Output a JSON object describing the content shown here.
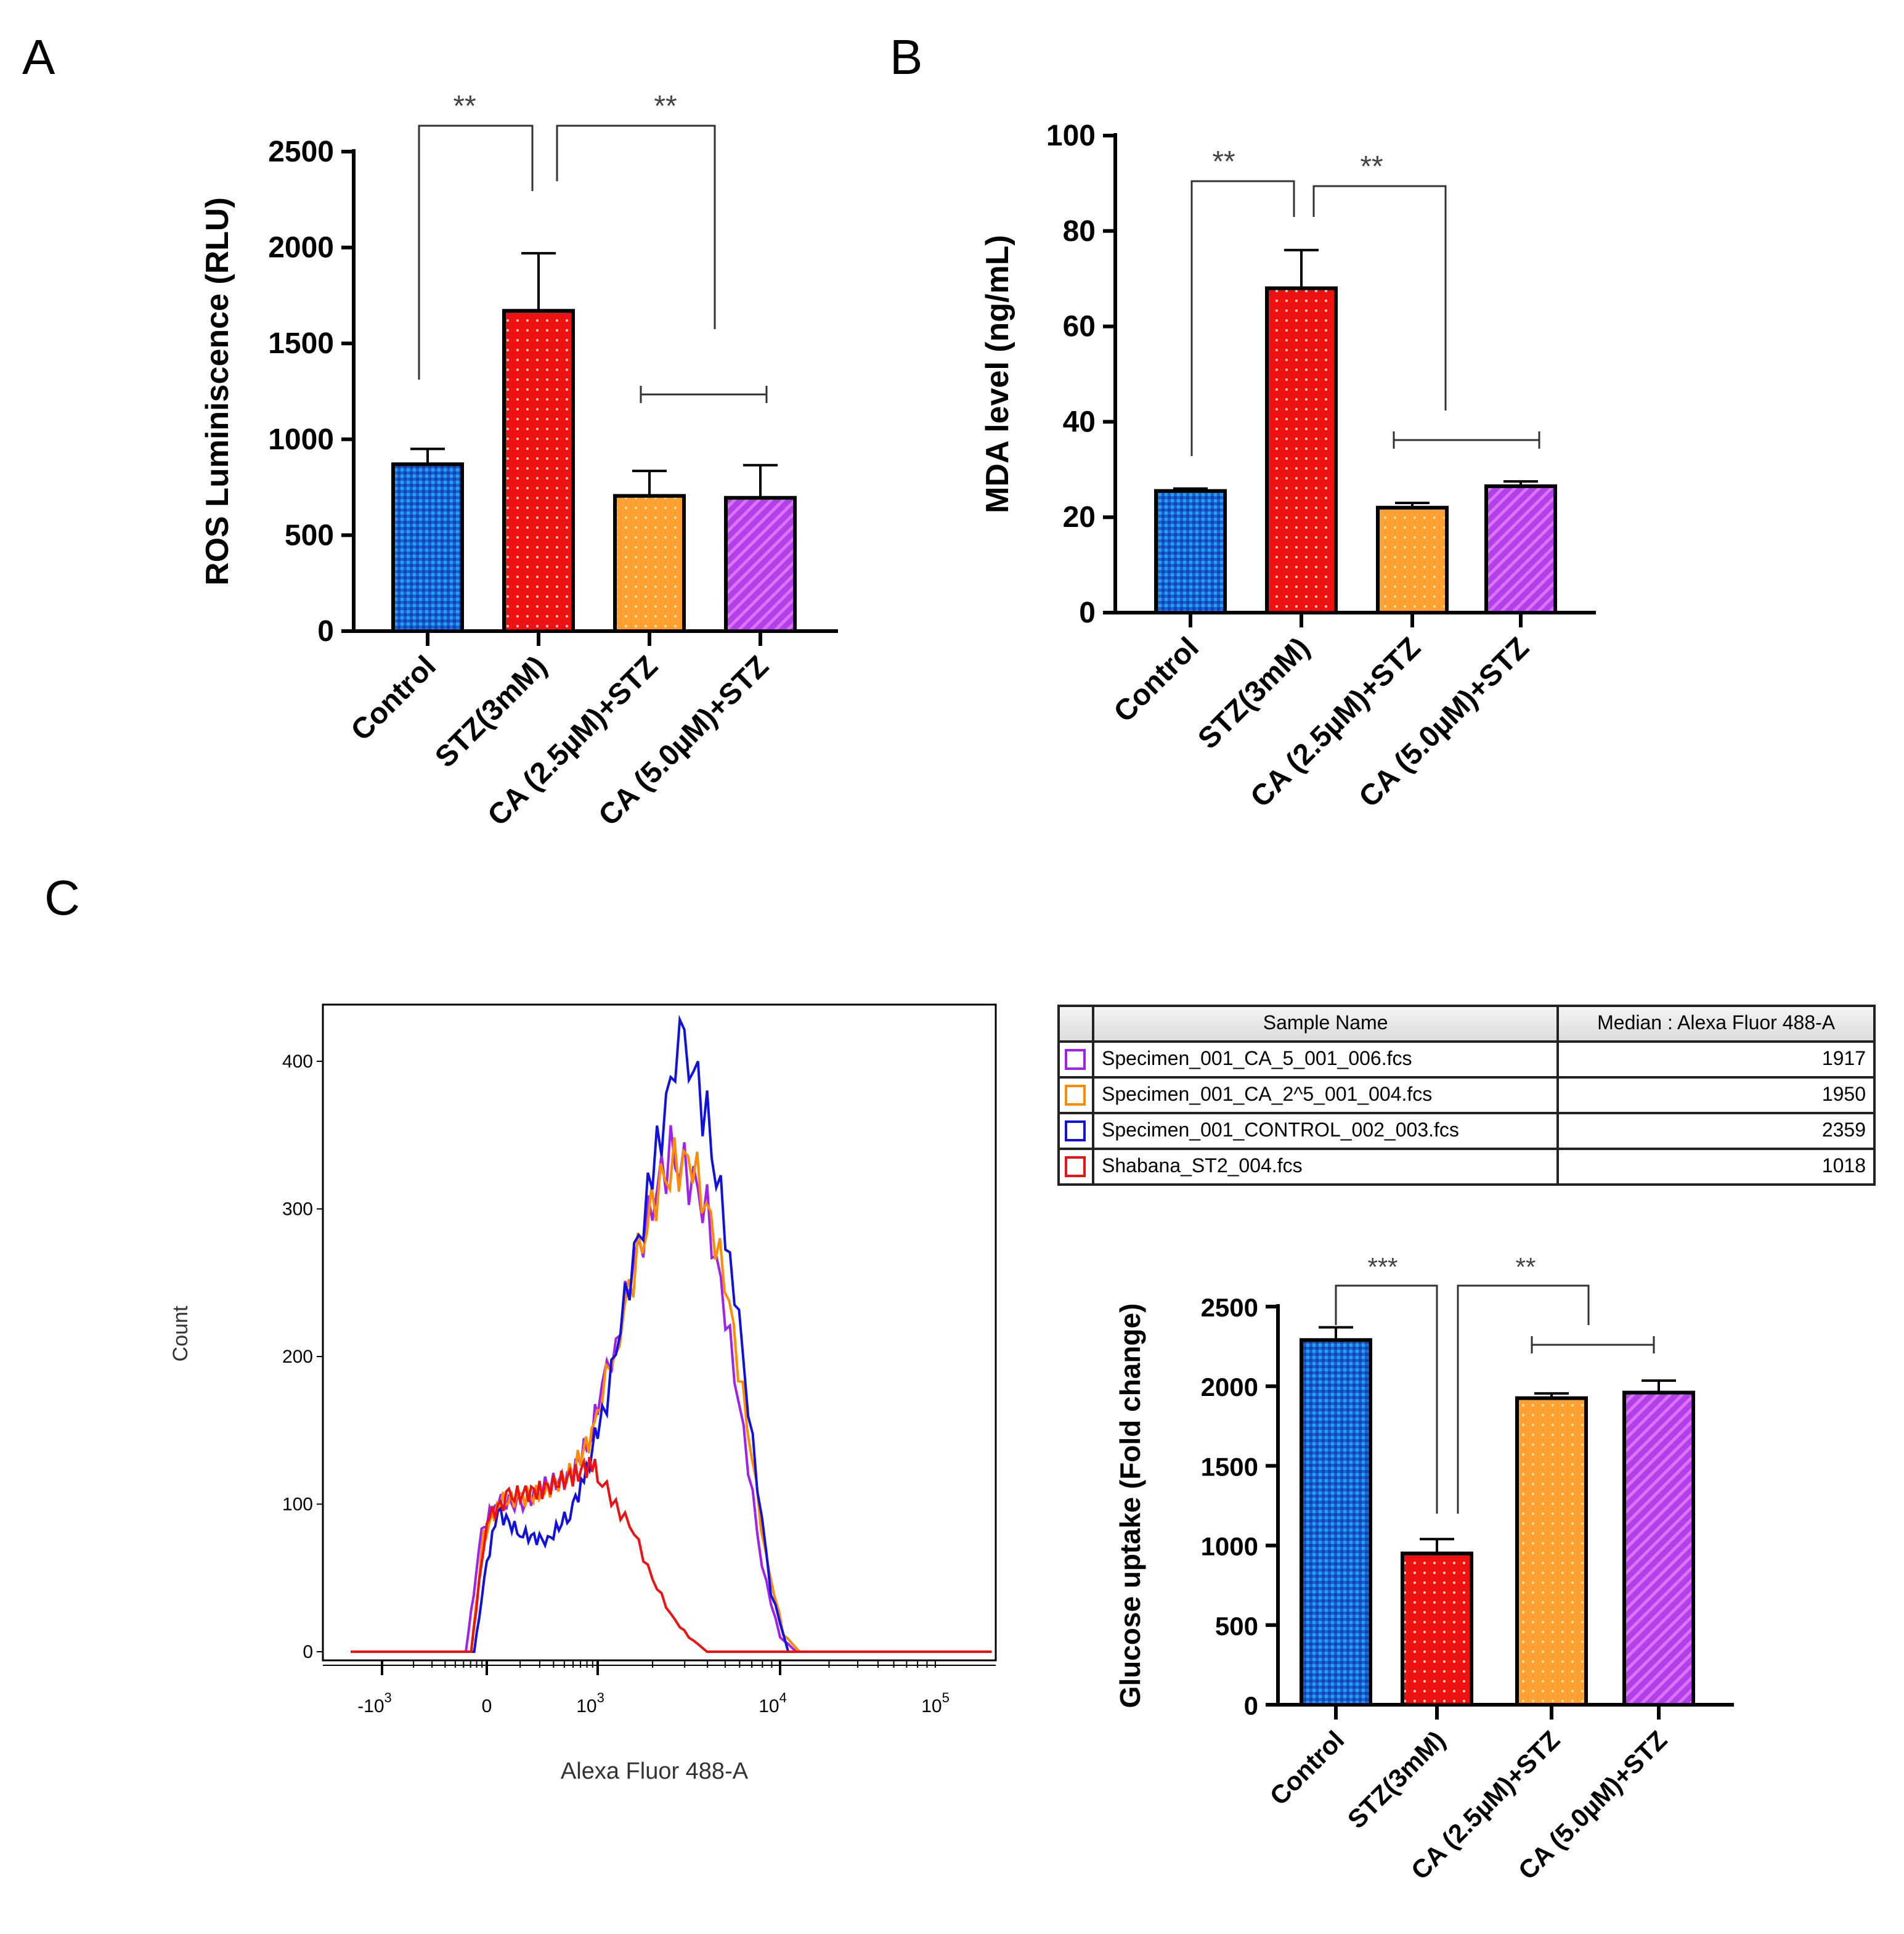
{
  "panel_labels": {
    "a": "A",
    "b": "B",
    "c": "C"
  },
  "categories": [
    "Control",
    "STZ(3mM)",
    "CA (2.5µM)+STZ",
    "CA (5.0µM)+STZ"
  ],
  "colors": {
    "control": "#1f5fd6",
    "stz": "#ee1111",
    "ca25": "#ffa030",
    "ca50": "#b040e8"
  },
  "chart_data": [
    {
      "type": "bar",
      "panel": "A",
      "title": "",
      "ylabel": "ROS Luminiscence (RLU)",
      "ylim": [
        0,
        2500
      ],
      "yticks": [
        "0",
        "500",
        "1000",
        "1500",
        "2000",
        "2500"
      ],
      "categories": [
        "Control",
        "STZ(3mM)",
        "CA (2.5µM)+STZ",
        "CA (5.0µM)+STZ"
      ],
      "values": [
        870,
        1670,
        705,
        695
      ],
      "errors": [
        80,
        300,
        130,
        170
      ],
      "significance": [
        {
          "from": "Control",
          "to": "STZ(3mM)",
          "label": "**"
        },
        {
          "from": "STZ(3mM)",
          "to": "CA (5.0µM)+STZ",
          "label": "**"
        },
        {
          "from": "CA (2.5µM)+STZ",
          "to": "CA (5.0µM)+STZ",
          "label": ""
        }
      ]
    },
    {
      "type": "bar",
      "panel": "B",
      "ylabel": "MDA level (ng/mL)",
      "ylim": [
        0,
        100
      ],
      "yticks": [
        "0",
        "20",
        "40",
        "60",
        "80",
        "100"
      ],
      "categories": [
        "Control",
        "STZ(3mM)",
        "CA (2.5µM)+STZ",
        "CA (5.0µM)+STZ"
      ],
      "values": [
        25.5,
        68,
        22,
        26.5
      ],
      "errors": [
        0.5,
        8,
        1,
        1
      ],
      "significance": [
        {
          "from": "Control",
          "to": "STZ(3mM)",
          "label": "**"
        },
        {
          "from": "STZ(3mM)",
          "to": "CA (2.5µM)+STZ",
          "label": "**"
        },
        {
          "from": "CA (2.5µM)+STZ",
          "to": "CA (5.0µM)+STZ",
          "label": ""
        }
      ]
    },
    {
      "type": "line",
      "panel": "C-histogram",
      "xlabel": "Alexa Fluor 488-A",
      "ylabel": "Count",
      "ylim": [
        0,
        430
      ],
      "yticks": [
        "0",
        "100",
        "200",
        "300",
        "400"
      ],
      "xticks": [
        {
          "base": "-10",
          "exp": "3"
        },
        {
          "base": "0",
          "exp": ""
        },
        {
          "base": "10",
          "exp": "3"
        },
        {
          "base": "10",
          "exp": "4"
        },
        {
          "base": "10",
          "exp": "5"
        }
      ],
      "x_units": "decade index (-1=-10^3, 0=0, 1=10^3, 2=10^4, 3=10^5)",
      "series": [
        {
          "name": "Specimen_001_CA_5_001_006.fcs",
          "color": "#a020f0",
          "points": [
            [
              -1.3,
              0
            ],
            [
              -0.2,
              0
            ],
            [
              -0.05,
              80
            ],
            [
              0.1,
              105
            ],
            [
              0.3,
              98
            ],
            [
              0.5,
              112
            ],
            [
              0.75,
              118
            ],
            [
              0.95,
              148
            ],
            [
              1.1,
              212
            ],
            [
              1.2,
              262
            ],
            [
              1.3,
              305
            ],
            [
              1.4,
              338
            ],
            [
              1.5,
              322
            ],
            [
              1.6,
              300
            ],
            [
              1.7,
              228
            ],
            [
              1.8,
              150
            ],
            [
              1.9,
              58
            ],
            [
              2.0,
              10
            ],
            [
              2.1,
              0
            ],
            [
              3.3,
              0
            ]
          ]
        },
        {
          "name": "Specimen_001_CA_2^5_001_004.fcs",
          "color": "#ff8c00",
          "points": [
            [
              -1.3,
              0
            ],
            [
              -0.15,
              0
            ],
            [
              -0.03,
              78
            ],
            [
              0.12,
              102
            ],
            [
              0.32,
              104
            ],
            [
              0.52,
              108
            ],
            [
              0.77,
              122
            ],
            [
              0.97,
              150
            ],
            [
              1.12,
              218
            ],
            [
              1.22,
              268
            ],
            [
              1.32,
              310
            ],
            [
              1.42,
              332
            ],
            [
              1.52,
              328
            ],
            [
              1.62,
              295
            ],
            [
              1.72,
              235
            ],
            [
              1.82,
              155
            ],
            [
              1.92,
              65
            ],
            [
              2.02,
              12
            ],
            [
              2.12,
              0
            ],
            [
              3.3,
              0
            ]
          ]
        },
        {
          "name": "Specimen_001_CONTROL_002_003.fcs",
          "color": "#1010e0",
          "points": [
            [
              -1.3,
              0
            ],
            [
              -0.12,
              0
            ],
            [
              0,
              60
            ],
            [
              0.1,
              95
            ],
            [
              0.3,
              80
            ],
            [
              0.55,
              75
            ],
            [
              0.75,
              95
            ],
            [
              0.9,
              120
            ],
            [
              1.05,
              170
            ],
            [
              1.15,
              240
            ],
            [
              1.3,
              320
            ],
            [
              1.4,
              390
            ],
            [
              1.45,
              418
            ],
            [
              1.5,
              405
            ],
            [
              1.6,
              360
            ],
            [
              1.75,
              250
            ],
            [
              1.85,
              140
            ],
            [
              1.95,
              40
            ],
            [
              2.05,
              0
            ],
            [
              3.3,
              0
            ]
          ]
        },
        {
          "name": "Shabana_ST2_004.fcs",
          "color": "#ee1111",
          "points": [
            [
              -1.3,
              0
            ],
            [
              -0.15,
              0
            ],
            [
              0,
              90
            ],
            [
              0.2,
              105
            ],
            [
              0.5,
              110
            ],
            [
              0.8,
              120
            ],
            [
              0.95,
              128
            ],
            [
              1.1,
              100
            ],
            [
              1.2,
              80
            ],
            [
              1.3,
              50
            ],
            [
              1.4,
              25
            ],
            [
              1.5,
              10
            ],
            [
              1.6,
              0
            ],
            [
              3.3,
              0
            ]
          ]
        }
      ]
    },
    {
      "type": "table",
      "panel": "C-table",
      "headers": [
        "",
        "Sample Name",
        "Median : Alexa Fluor 488-A"
      ],
      "rows": [
        {
          "color": "#a020f0",
          "name": "Specimen_001_CA_5_001_006.fcs",
          "median": "1917"
        },
        {
          "color": "#ff8c00",
          "name": "Specimen_001_CA_2^5_001_004.fcs",
          "median": "1950"
        },
        {
          "color": "#1010e0",
          "name": "Specimen_001_CONTROL_002_003.fcs",
          "median": "2359"
        },
        {
          "color": "#ee1111",
          "name": "Shabana_ST2_004.fcs",
          "median": "1018"
        }
      ]
    },
    {
      "type": "bar",
      "panel": "C-glucose",
      "ylabel": "Glucose uptake (Fold change)",
      "ylim": [
        0,
        2500
      ],
      "yticks": [
        "0",
        "500",
        "1000",
        "1500",
        "2000",
        "2500"
      ],
      "categories": [
        "Control",
        "STZ(3mM)",
        "CA (2.5µM)+STZ",
        "CA (5.0µM)+STZ"
      ],
      "values": [
        2290,
        950,
        1925,
        1960
      ],
      "errors": [
        80,
        90,
        30,
        75
      ],
      "significance": [
        {
          "from": "Control",
          "to": "STZ(3mM)",
          "label": "***"
        },
        {
          "from": "STZ(3mM)",
          "to": "CA (2.5µM)+STZ",
          "label": "**"
        },
        {
          "from": "CA (2.5µM)+STZ",
          "to": "CA (5.0µM)+STZ",
          "label": ""
        }
      ]
    }
  ]
}
